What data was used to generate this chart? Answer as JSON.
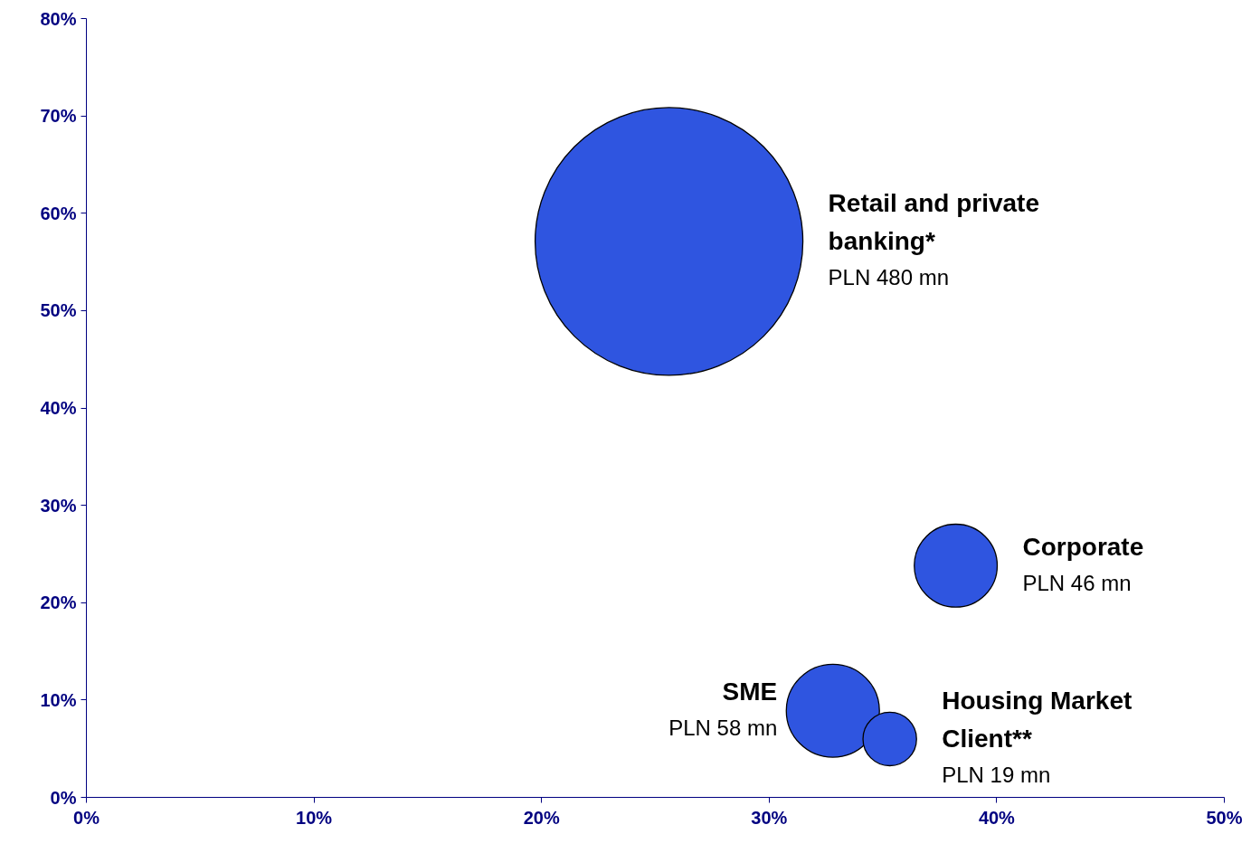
{
  "chart_data": {
    "type": "bubble",
    "xlim": [
      0,
      50
    ],
    "ylim": [
      0,
      80
    ],
    "xticks": [
      {
        "value": 0,
        "label": "0%"
      },
      {
        "value": 10,
        "label": "10%"
      },
      {
        "value": 20,
        "label": "20%"
      },
      {
        "value": 30,
        "label": "30%"
      },
      {
        "value": 40,
        "label": "40%"
      },
      {
        "value": 50,
        "label": "50%"
      }
    ],
    "yticks": [
      {
        "value": 0,
        "label": "0%"
      },
      {
        "value": 10,
        "label": "10%"
      },
      {
        "value": 20,
        "label": "20%"
      },
      {
        "value": 30,
        "label": "30%"
      },
      {
        "value": 40,
        "label": "40%"
      },
      {
        "value": 50,
        "label": "50%"
      },
      {
        "value": 60,
        "label": "60%"
      },
      {
        "value": 70,
        "label": "70%"
      },
      {
        "value": 80,
        "label": "80%"
      }
    ],
    "grid": false,
    "series": [
      {
        "name": "Retail and private banking*",
        "color": "#2f55e0",
        "x": [
          25.6
        ],
        "values": [
          57.1
        ],
        "sizes": [
          1
        ],
        "value_labels": [
          "PLN 480 mn"
        ]
      },
      {
        "name": "Corporate",
        "color": "#2f55e0",
        "x": [
          38.2
        ],
        "values": [
          23.8
        ],
        "sizes": [
          0.096
        ],
        "value_labels": [
          "PLN 46 mn"
        ]
      },
      {
        "name": "SME",
        "color": "#2f55e0",
        "x": [
          32.8
        ],
        "values": [
          8.9
        ],
        "sizes": [
          0.121
        ],
        "value_labels": [
          "PLN 58 mn"
        ]
      },
      {
        "name": "Housing Market Client**",
        "color": "#2f55e0",
        "x": [
          35.3
        ],
        "values": [
          6.0
        ],
        "sizes": [
          0.04
        ],
        "value_labels": [
          "PLN 19 mn"
        ]
      }
    ]
  }
}
